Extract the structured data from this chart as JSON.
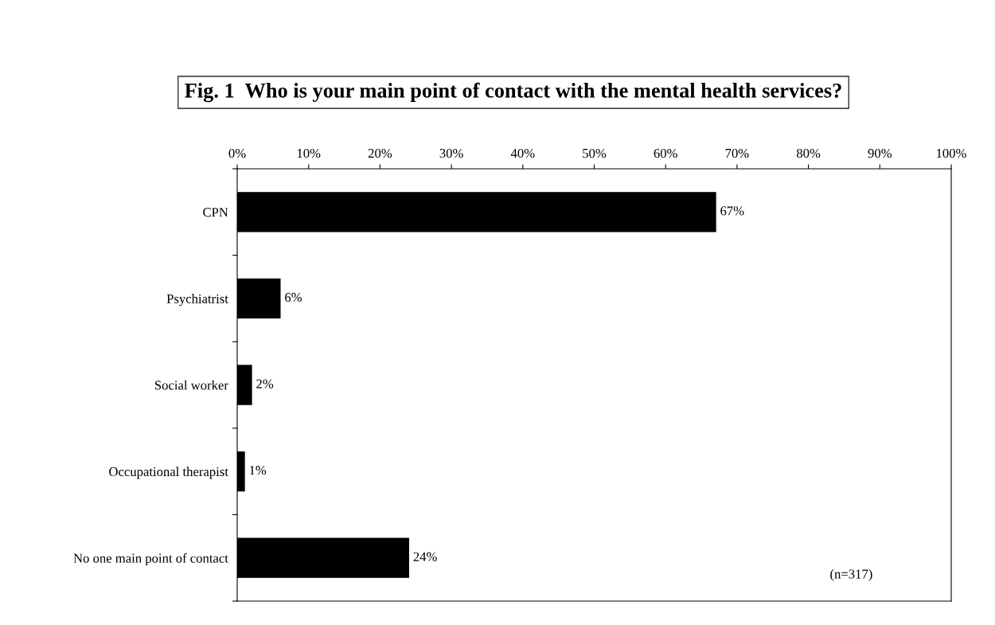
{
  "chart_data": {
    "type": "bar",
    "orientation": "horizontal",
    "title": "Fig. 1  Who is your main point of contact with the mental health services?",
    "categories": [
      "CPN",
      "Psychiatrist",
      "Social worker",
      "Occupational therapist",
      "No one main point of contact"
    ],
    "values": [
      67,
      6,
      2,
      1,
      24
    ],
    "color": "#000000",
    "value_labels": [
      "67%",
      "6%",
      "2%",
      "1%",
      "24%"
    ],
    "xlim": [
      0,
      100
    ],
    "xticks": [
      {
        "value": 0,
        "label": "0%"
      },
      {
        "value": 10,
        "label": "10%"
      },
      {
        "value": 20,
        "label": "20%"
      },
      {
        "value": 30,
        "label": "30%"
      },
      {
        "value": 40,
        "label": "40%"
      },
      {
        "value": 50,
        "label": "50%"
      },
      {
        "value": 60,
        "label": "60%"
      },
      {
        "value": 70,
        "label": "70%"
      },
      {
        "value": 80,
        "label": "80%"
      },
      {
        "value": 90,
        "label": "90%"
      },
      {
        "value": 100,
        "label": "100%"
      }
    ],
    "annotations": [
      "(n=317)"
    ],
    "grid": false,
    "legend": false
  }
}
